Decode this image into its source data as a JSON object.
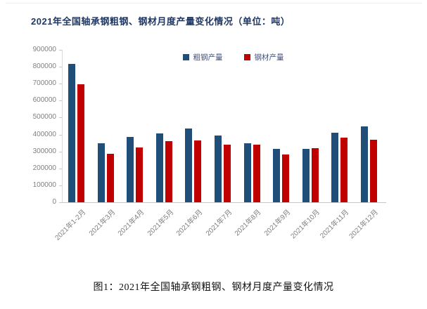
{
  "page": {
    "caption": "图1：2021年全国轴承钢粗钢、钢材月度产量变化情况"
  },
  "chart_data": {
    "type": "bar",
    "title": "2021年全国轴承钢粗钢、钢材月度产量变化情况（单位：吨）",
    "unit": "吨",
    "categories": [
      "2021年1-2月",
      "2021年3月",
      "2021年4月",
      "2021年5月",
      "2021年6月",
      "2021年7月",
      "2021年8月",
      "2021年9月",
      "2021年10月",
      "2021年11月",
      "2021年12月"
    ],
    "series": [
      {
        "name": "粗钢产量",
        "color": "#1F4E79",
        "values": [
          815000,
          350000,
          385000,
          405000,
          435000,
          395000,
          350000,
          315000,
          315000,
          410000,
          450000
        ]
      },
      {
        "name": "钢材产量",
        "color": "#C00000",
        "values": [
          695000,
          285000,
          325000,
          360000,
          365000,
          340000,
          340000,
          280000,
          320000,
          380000,
          370000
        ]
      }
    ],
    "ylim": [
      0,
      900000
    ],
    "y_tick_step": 100000,
    "y_ticks": [
      "0",
      "100000",
      "200000",
      "300000",
      "400000",
      "500000",
      "600000",
      "700000",
      "800000",
      "900000"
    ],
    "xlabel": "",
    "ylabel": "",
    "grid": false,
    "legend_position": "top"
  }
}
